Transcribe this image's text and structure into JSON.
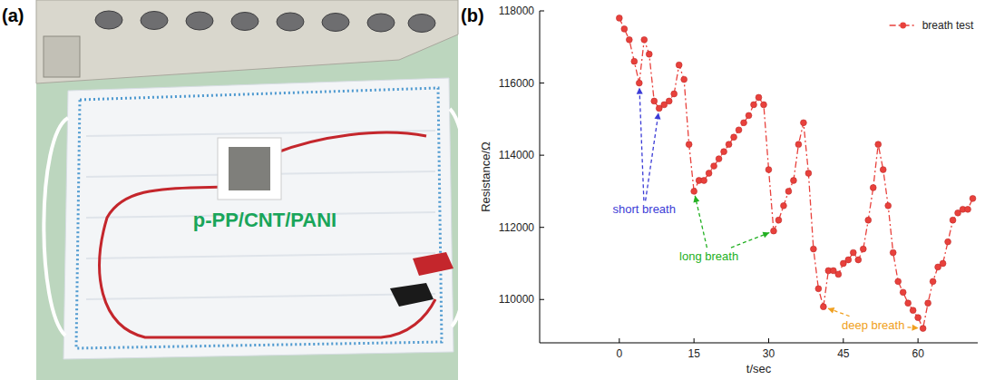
{
  "photo": {
    "letter": "(a)",
    "label": "p-PP/CNT/PANI"
  },
  "chart_data": {
    "type": "line",
    "letter": "(b)",
    "x_label": "t/sec",
    "y_label": "Resistance/Ω",
    "x": [
      0,
      1,
      2,
      3,
      4,
      5,
      6,
      7,
      8,
      9,
      10,
      11,
      12,
      13,
      14,
      15,
      16,
      17,
      18,
      19,
      20,
      21,
      22,
      23,
      24,
      25,
      26,
      27,
      28,
      29,
      30,
      31,
      32,
      33,
      34,
      35,
      36,
      37,
      38,
      39,
      40,
      41,
      42,
      43,
      44,
      45,
      46,
      47,
      48,
      49,
      50,
      51,
      52,
      53,
      54,
      55,
      56,
      57,
      58,
      59,
      60,
      61,
      62,
      63,
      64,
      65,
      66,
      67,
      68,
      69,
      70,
      71
    ],
    "series": [
      {
        "name": "breath test",
        "color": "#e8413c",
        "marker": "circle",
        "line_style": "dashdot",
        "values": [
          117800,
          117500,
          117200,
          116600,
          116000,
          117200,
          116800,
          115500,
          115300,
          115400,
          115500,
          115700,
          116500,
          116100,
          114300,
          113000,
          113300,
          113300,
          113500,
          113700,
          113900,
          114100,
          114300,
          114500,
          114700,
          114900,
          115100,
          115400,
          115600,
          115400,
          113600,
          111900,
          112200,
          112600,
          113000,
          113300,
          114300,
          114900,
          113500,
          111400,
          110300,
          109800,
          110800,
          110800,
          110700,
          111000,
          111100,
          111300,
          111100,
          111400,
          112200,
          113100,
          114300,
          113600,
          112600,
          111300,
          110500,
          110200,
          109900,
          109700,
          109500,
          109200,
          109900,
          110500,
          110900,
          111000,
          111600,
          112200,
          112400,
          112500,
          112500,
          112800
        ]
      }
    ],
    "xlim": [
      -16,
      72
    ],
    "xticks": [
      0,
      15,
      30,
      45,
      60
    ],
    "ylim": [
      108800,
      118000
    ],
    "yticks": [
      110000,
      112000,
      114000,
      116000,
      118000
    ],
    "grid": false,
    "legend": "upper-right",
    "annotations": [
      {
        "text": "short breath",
        "color": "#3b3bd6",
        "x": 5,
        "y": 112500,
        "arrow_to": [
          [
            4,
            116000
          ],
          [
            8,
            115300
          ]
        ]
      },
      {
        "text": "long breath",
        "color": "#22b022",
        "x": 18,
        "y": 111200,
        "arrow_to": [
          [
            15,
            113000
          ],
          [
            31,
            111900
          ]
        ]
      },
      {
        "text": "deep breath",
        "color": "#f0a020",
        "x": 51,
        "y": 109300,
        "arrow_to": [
          [
            41,
            109800
          ],
          [
            61,
            109200
          ]
        ]
      }
    ]
  }
}
